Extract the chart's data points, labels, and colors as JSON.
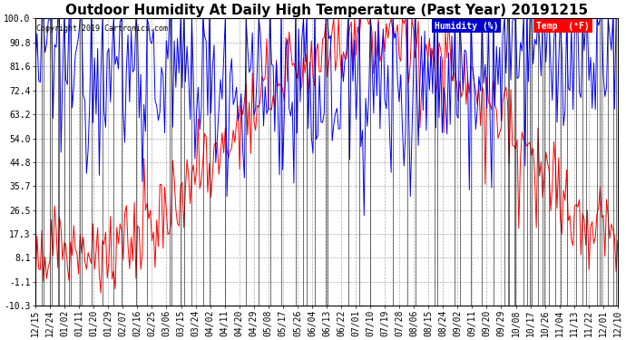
{
  "title": "Outdoor Humidity At Daily High Temperature (Past Year) 20191215",
  "copyright": "Copyright 2019 Cartronics.com",
  "yticks": [
    100.0,
    90.8,
    81.6,
    72.4,
    63.2,
    54.0,
    44.8,
    35.7,
    26.5,
    17.3,
    8.1,
    -1.1,
    -10.3
  ],
  "ylim": [
    -10.3,
    100.0
  ],
  "xtick_labels": [
    "12/15",
    "12/24",
    "01/02",
    "01/11",
    "01/20",
    "01/29",
    "02/07",
    "02/16",
    "02/25",
    "03/06",
    "03/15",
    "03/24",
    "04/02",
    "04/11",
    "04/20",
    "04/29",
    "05/08",
    "05/17",
    "05/26",
    "06/04",
    "06/13",
    "06/22",
    "07/01",
    "07/10",
    "07/19",
    "07/28",
    "08/06",
    "08/15",
    "08/24",
    "09/02",
    "09/11",
    "09/20",
    "09/29",
    "10/08",
    "10/17",
    "10/26",
    "11/04",
    "11/13",
    "11/22",
    "12/01",
    "12/10"
  ],
  "bg_color": "#ffffff",
  "grid_color": "#aaaaaa",
  "humidity_color": "#0000ff",
  "temp_color": "#ff0000",
  "black_color": "#000000",
  "legend_humidity_bg": "#0000cc",
  "legend_temp_bg": "#ff0000",
  "title_fontsize": 11,
  "tick_fontsize": 7,
  "figwidth": 6.9,
  "figheight": 3.75,
  "dpi": 100
}
